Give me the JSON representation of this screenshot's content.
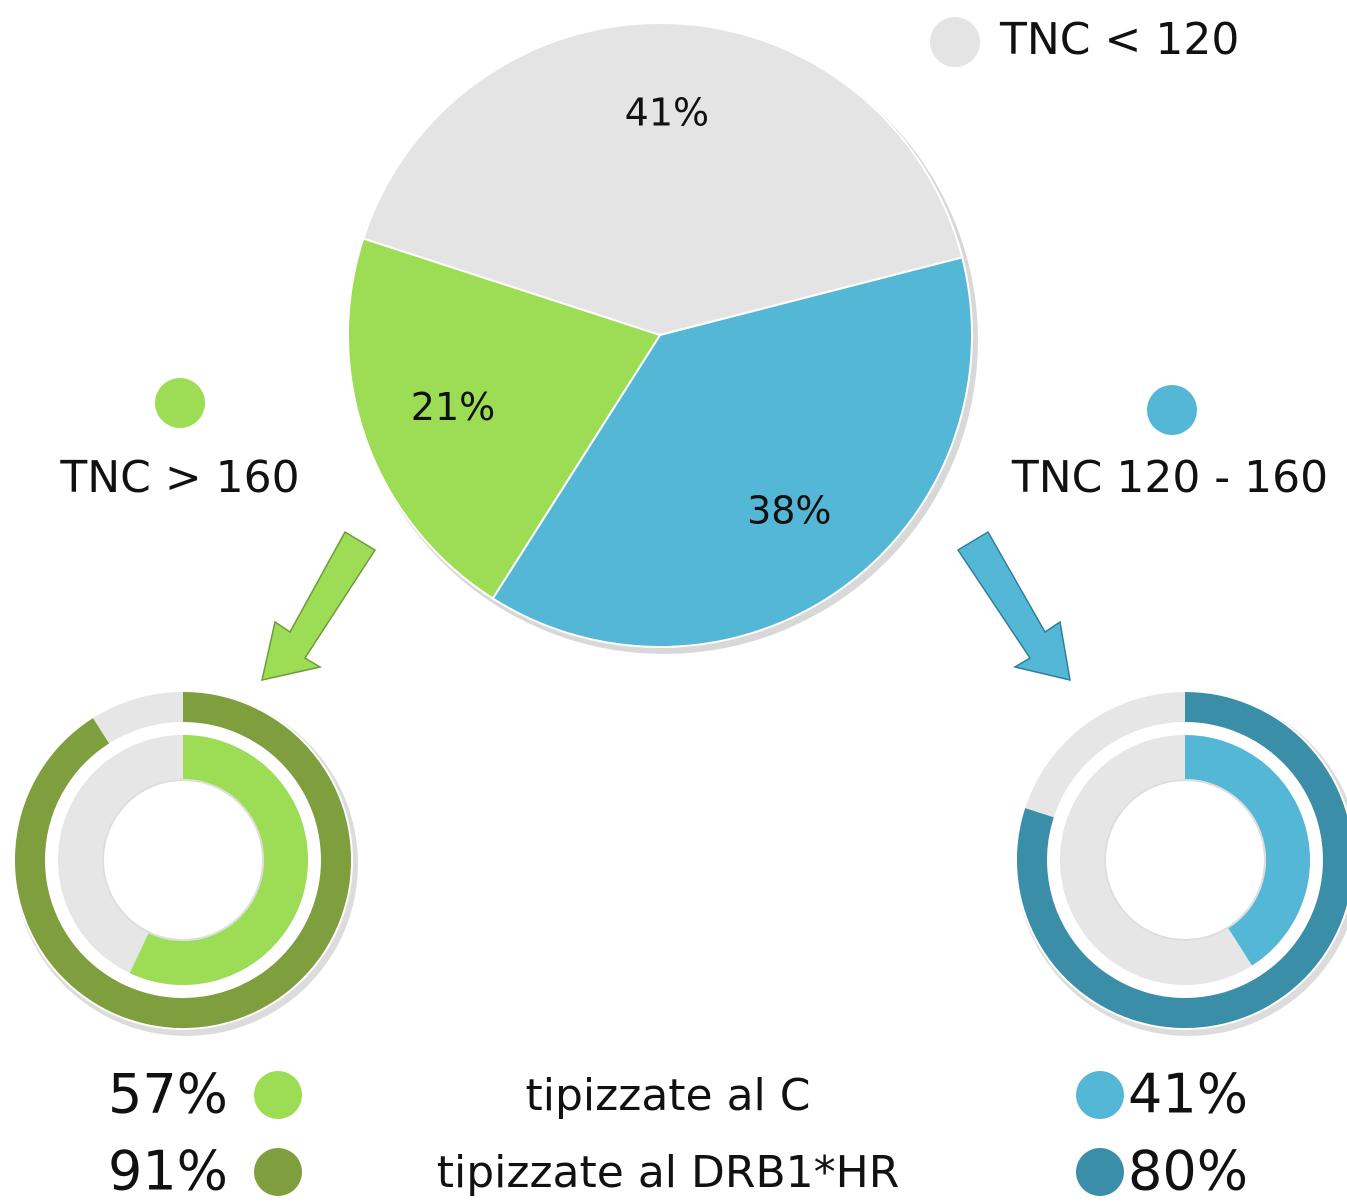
{
  "chart_data": [
    {
      "type": "pie",
      "categories": [
        "TNC < 120",
        "TNC 120 - 160",
        "TNC > 160"
      ],
      "values": [
        41,
        38,
        21
      ],
      "value_labels": [
        "41%",
        "38%",
        "21%"
      ],
      "colors": [
        "#e4e4e4",
        "#55b7d6",
        "#9ddc55"
      ]
    },
    {
      "type": "donut",
      "series": [
        {
          "name": "tipizzate al C",
          "color": "#9ddc55",
          "values": [
            57
          ],
          "value_labels": [
            "57%"
          ]
        },
        {
          "name": "tipizzate al DRB1*HR",
          "color": "#7f9f3f",
          "values": [
            91
          ],
          "value_labels": [
            "91%"
          ]
        }
      ]
    },
    {
      "type": "donut",
      "series": [
        {
          "color": "#55b7d6",
          "values": [
            41
          ],
          "value_labels": [
            "41%"
          ]
        },
        {
          "color": "#3a8ea8",
          "values": [
            80
          ],
          "value_labels": [
            "80%"
          ]
        }
      ]
    }
  ]
}
